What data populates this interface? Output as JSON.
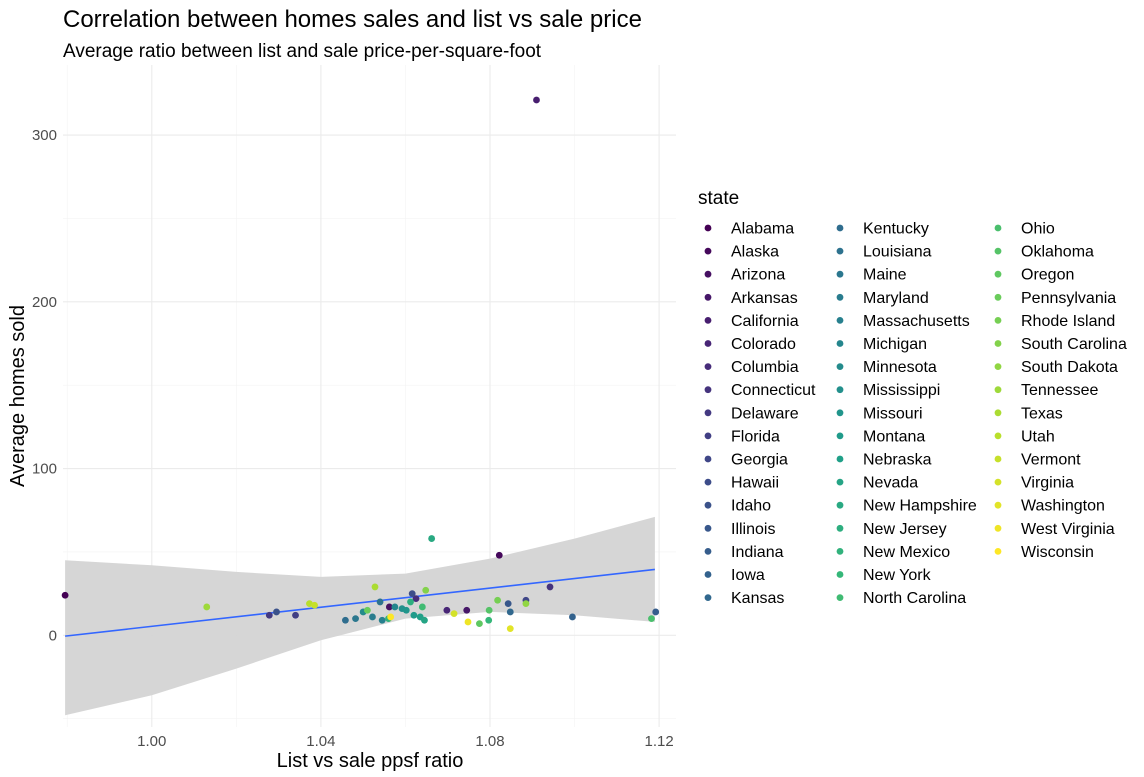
{
  "chart_data": {
    "type": "scatter",
    "title": "Correlation between homes sales and list vs sale price",
    "subtitle": "Average ratio between list and sale price-per-square-foot",
    "xlabel": "List vs sale ppsf ratio",
    "ylabel": "Average homes sold",
    "xlim": [
      0.979,
      1.124
    ],
    "ylim": [
      -55,
      342
    ],
    "x_ticks": [
      1.0,
      1.04,
      1.08,
      1.12
    ],
    "x_tick_labels": [
      "1.00",
      "1.04",
      "1.08",
      "1.12"
    ],
    "y_ticks": [
      0,
      100,
      200,
      300
    ],
    "y_tick_labels": [
      "0",
      "100",
      "200",
      "300"
    ],
    "grid": true,
    "legend": {
      "title": "state",
      "position": "right",
      "entries": [
        "Alabama",
        "Alaska",
        "Arizona",
        "Arkansas",
        "California",
        "Colorado",
        "Columbia",
        "Connecticut",
        "Delaware",
        "Florida",
        "Georgia",
        "Hawaii",
        "Idaho",
        "Illinois",
        "Indiana",
        "Iowa",
        "Kansas",
        "Kentucky",
        "Louisiana",
        "Maine",
        "Maryland",
        "Massachusetts",
        "Michigan",
        "Minnesota",
        "Mississippi",
        "Missouri",
        "Montana",
        "Nebraska",
        "Nevada",
        "New Hampshire",
        "New Jersey",
        "New Mexico",
        "New York",
        "North Carolina",
        "Ohio",
        "Oklahoma",
        "Oregon",
        "Pennsylvania",
        "Rhode Island",
        "South Carolina",
        "South Dakota",
        "Tennessee",
        "Texas",
        "Utah",
        "Vermont",
        "Virginia",
        "Washington",
        "West Virginia",
        "Wisconsin"
      ]
    },
    "points": [
      {
        "state": "Alabama",
        "x": 0.9795,
        "y": 24
      },
      {
        "state": "Alaska",
        "x": 1.0822,
        "y": 48
      },
      {
        "state": "Arizona",
        "x": 1.0562,
        "y": 17
      },
      {
        "state": "Arkansas",
        "x": 1.0745,
        "y": 15
      },
      {
        "state": "California",
        "x": 1.091,
        "y": 321
      },
      {
        "state": "Colorado",
        "x": 1.0698,
        "y": 15
      },
      {
        "state": "Columbia",
        "x": 1.0625,
        "y": 22
      },
      {
        "state": "Connecticut",
        "x": 1.0942,
        "y": 29
      },
      {
        "state": "Delaware",
        "x": 1.0278,
        "y": 12
      },
      {
        "state": "Florida",
        "x": 1.034,
        "y": 12
      },
      {
        "state": "Georgia",
        "x": 1.0885,
        "y": 21
      },
      {
        "state": "Hawaii",
        "x": 1.0616,
        "y": 25
      },
      {
        "state": "Idaho",
        "x": 1.0295,
        "y": 14
      },
      {
        "state": "Illinois",
        "x": 1.0843,
        "y": 19
      },
      {
        "state": "Indiana",
        "x": 1.1192,
        "y": 14
      },
      {
        "state": "Iowa",
        "x": 1.0995,
        "y": 11
      },
      {
        "state": "Kansas",
        "x": 1.0848,
        "y": 14
      },
      {
        "state": "Kentucky",
        "x": 1.0458,
        "y": 9
      },
      {
        "state": "Louisiana",
        "x": 1.054,
        "y": 20
      },
      {
        "state": "Maine",
        "x": 1.0482,
        "y": 10
      },
      {
        "state": "Maryland",
        "x": 1.0522,
        "y": 11
      },
      {
        "state": "Massachusetts",
        "x": 1.0545,
        "y": 9
      },
      {
        "state": "Michigan",
        "x": 1.0575,
        "y": 17
      },
      {
        "state": "Minnesota",
        "x": 1.05,
        "y": 14
      },
      {
        "state": "Mississippi",
        "x": 1.0592,
        "y": 16
      },
      {
        "state": "Missouri",
        "x": 1.0602,
        "y": 15
      },
      {
        "state": "Montana",
        "x": 1.062,
        "y": 12
      },
      {
        "state": "Nebraska",
        "x": 1.0635,
        "y": 11
      },
      {
        "state": "Nevada",
        "x": 1.0645,
        "y": 9
      },
      {
        "state": "New Hampshire",
        "x": 1.0662,
        "y": 58
      },
      {
        "state": "New Jersey",
        "x": 1.0612,
        "y": 20
      },
      {
        "state": "New Mexico",
        "x": 1.056,
        "y": 10
      },
      {
        "state": "New York",
        "x": 1.0797,
        "y": 9
      },
      {
        "state": "North Carolina",
        "x": 1.064,
        "y": 17
      },
      {
        "state": "Ohio",
        "x": 1.1182,
        "y": 10
      },
      {
        "state": "Oklahoma",
        "x": 1.0798,
        "y": 15
      },
      {
        "state": "Oregon",
        "x": 1.0775,
        "y": 7
      },
      {
        "state": "Pennsylvania",
        "x": 1.051,
        "y": 15
      },
      {
        "state": "Rhode Island",
        "x": 1.0818,
        "y": 21
      },
      {
        "state": "South Carolina",
        "x": 1.0648,
        "y": 27
      },
      {
        "state": "South Dakota",
        "x": 1.0885,
        "y": 19
      },
      {
        "state": "Tennessee",
        "x": 1.013,
        "y": 17
      },
      {
        "state": "Texas",
        "x": 1.0528,
        "y": 29
      },
      {
        "state": "Utah",
        "x": 1.0373,
        "y": 19
      },
      {
        "state": "Vermont",
        "x": 1.0385,
        "y": 18
      },
      {
        "state": "Virginia",
        "x": 1.0715,
        "y": 13
      },
      {
        "state": "Washington",
        "x": 1.0848,
        "y": 4
      },
      {
        "state": "West Virginia",
        "x": 1.0748,
        "y": 8
      },
      {
        "state": "Wisconsin",
        "x": 1.0565,
        "y": 11
      }
    ],
    "trend": {
      "method": "lm",
      "x": [
        0.9795,
        1.119
      ],
      "y": [
        -0.5,
        39.5
      ],
      "ci_upper": [
        [
          0.9795,
          45
        ],
        [
          1.0,
          42
        ],
        [
          1.02,
          38
        ],
        [
          1.04,
          35
        ],
        [
          1.06,
          37
        ],
        [
          1.08,
          46
        ],
        [
          1.1,
          58
        ],
        [
          1.119,
          71
        ]
      ],
      "ci_lower": [
        [
          0.9795,
          -48
        ],
        [
          1.0,
          -36
        ],
        [
          1.02,
          -20
        ],
        [
          1.04,
          -3
        ],
        [
          1.06,
          10
        ],
        [
          1.08,
          14
        ],
        [
          1.1,
          12
        ],
        [
          1.119,
          8
        ]
      ]
    },
    "colors": {
      "trend_line": "#3366ff",
      "ci_band": "#d4d4d4",
      "palette_start": "#440154",
      "palette_end": "#fde725"
    }
  }
}
